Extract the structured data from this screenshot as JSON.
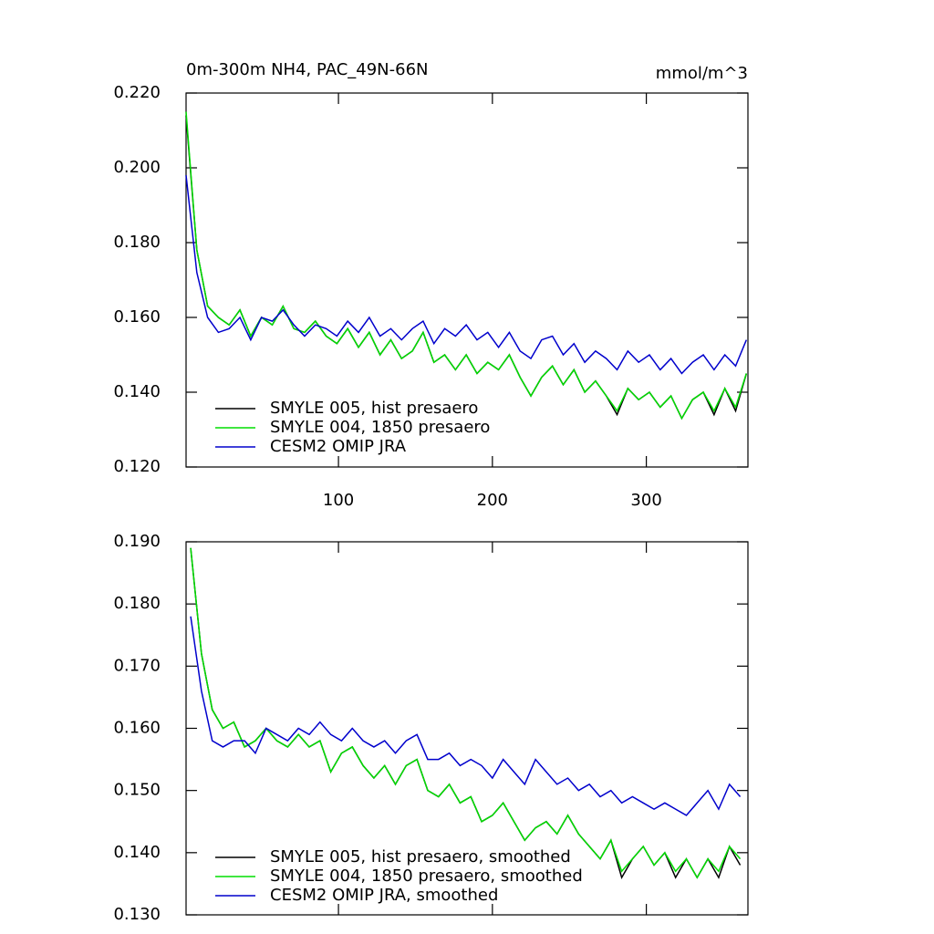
{
  "chart_data": [
    {
      "type": "line",
      "title": "0m-300m NH4, PAC_49N-66N",
      "units": "mmol/m^3",
      "x": [
        1,
        8,
        15,
        22,
        29,
        36,
        43,
        50,
        57,
        64,
        71,
        78,
        85,
        92,
        99,
        106,
        113,
        120,
        127,
        134,
        141,
        148,
        155,
        162,
        169,
        176,
        183,
        190,
        197,
        204,
        211,
        218,
        225,
        232,
        239,
        246,
        253,
        260,
        267,
        274,
        281,
        288,
        295,
        302,
        309,
        316,
        323,
        330,
        337,
        344,
        351,
        358,
        365
      ],
      "series": [
        {
          "name": "SMYLE 005, hist presaero",
          "color": "#000000",
          "values": [
            0.214,
            0.178,
            0.163,
            0.16,
            0.158,
            0.162,
            0.155,
            0.16,
            0.158,
            0.163,
            0.157,
            0.156,
            0.159,
            0.155,
            0.153,
            0.157,
            0.152,
            0.156,
            0.15,
            0.154,
            0.149,
            0.151,
            0.156,
            0.148,
            0.15,
            0.146,
            0.15,
            0.145,
            0.148,
            0.146,
            0.15,
            0.144,
            0.139,
            0.144,
            0.147,
            0.142,
            0.146,
            0.14,
            0.143,
            0.139,
            0.134,
            0.141,
            0.138,
            0.14,
            0.136,
            0.139,
            0.133,
            0.138,
            0.14,
            0.134,
            0.141,
            0.135,
            0.145
          ]
        },
        {
          "name": "SMYLE 004, 1850 presaero",
          "color": "#00dd00",
          "values": [
            0.215,
            0.178,
            0.163,
            0.16,
            0.158,
            0.162,
            0.155,
            0.16,
            0.158,
            0.163,
            0.157,
            0.156,
            0.159,
            0.155,
            0.153,
            0.157,
            0.152,
            0.156,
            0.15,
            0.154,
            0.149,
            0.151,
            0.156,
            0.148,
            0.15,
            0.146,
            0.15,
            0.145,
            0.148,
            0.146,
            0.15,
            0.144,
            0.139,
            0.144,
            0.147,
            0.142,
            0.146,
            0.14,
            0.143,
            0.139,
            0.135,
            0.141,
            0.138,
            0.14,
            0.136,
            0.139,
            0.133,
            0.138,
            0.14,
            0.135,
            0.141,
            0.136,
            0.145
          ]
        },
        {
          "name": "CESM2 OMIP JRA",
          "color": "#0000cc",
          "values": [
            0.198,
            0.172,
            0.16,
            0.156,
            0.157,
            0.16,
            0.154,
            0.16,
            0.159,
            0.162,
            0.158,
            0.155,
            0.158,
            0.157,
            0.155,
            0.159,
            0.156,
            0.16,
            0.155,
            0.157,
            0.154,
            0.157,
            0.159,
            0.153,
            0.157,
            0.155,
            0.158,
            0.154,
            0.156,
            0.152,
            0.156,
            0.151,
            0.149,
            0.154,
            0.155,
            0.15,
            0.153,
            0.148,
            0.151,
            0.149,
            0.146,
            0.151,
            0.148,
            0.15,
            0.146,
            0.149,
            0.145,
            0.148,
            0.15,
            0.146,
            0.15,
            0.147,
            0.154
          ]
        }
      ],
      "xlim": [
        1,
        366
      ],
      "xticks": [
        100,
        200,
        300
      ],
      "ylim": [
        0.12,
        0.22
      ],
      "yticks": [
        {
          "value": 0.12,
          "label": "0.120"
        },
        {
          "value": 0.14,
          "label": "0.140"
        },
        {
          "value": 0.16,
          "label": "0.160"
        },
        {
          "value": 0.18,
          "label": "0.180"
        },
        {
          "value": 0.2,
          "label": "0.200"
        },
        {
          "value": 0.22,
          "label": "0.220"
        }
      ],
      "legend": "lower left"
    },
    {
      "type": "line",
      "x": [
        4,
        11,
        18,
        25,
        32,
        39,
        46,
        53,
        60,
        67,
        74,
        81,
        88,
        95,
        102,
        109,
        116,
        123,
        130,
        137,
        144,
        151,
        158,
        165,
        172,
        179,
        186,
        193,
        200,
        207,
        214,
        221,
        228,
        235,
        242,
        249,
        256,
        263,
        270,
        277,
        284,
        291,
        298,
        305,
        312,
        319,
        326,
        333,
        340,
        347,
        354,
        361
      ],
      "series": [
        {
          "name": "SMYLE 005, hist presaero, smoothed",
          "color": "#000000",
          "values": [
            0.189,
            0.172,
            0.163,
            0.16,
            0.161,
            0.157,
            0.158,
            0.16,
            0.158,
            0.157,
            0.159,
            0.157,
            0.158,
            0.153,
            0.156,
            0.157,
            0.154,
            0.152,
            0.154,
            0.151,
            0.154,
            0.155,
            0.15,
            0.149,
            0.151,
            0.148,
            0.149,
            0.145,
            0.146,
            0.148,
            0.145,
            0.142,
            0.144,
            0.145,
            0.143,
            0.146,
            0.143,
            0.141,
            0.139,
            0.142,
            0.136,
            0.139,
            0.141,
            0.138,
            0.14,
            0.136,
            0.139,
            0.136,
            0.139,
            0.136,
            0.141,
            0.138
          ]
        },
        {
          "name": "SMYLE 004, 1850 presaero, smoothed",
          "color": "#00dd00",
          "values": [
            0.189,
            0.172,
            0.163,
            0.16,
            0.161,
            0.157,
            0.158,
            0.16,
            0.158,
            0.157,
            0.159,
            0.157,
            0.158,
            0.153,
            0.156,
            0.157,
            0.154,
            0.152,
            0.154,
            0.151,
            0.154,
            0.155,
            0.15,
            0.149,
            0.151,
            0.148,
            0.149,
            0.145,
            0.146,
            0.148,
            0.145,
            0.142,
            0.144,
            0.145,
            0.143,
            0.146,
            0.143,
            0.141,
            0.139,
            0.142,
            0.137,
            0.139,
            0.141,
            0.138,
            0.14,
            0.137,
            0.139,
            0.136,
            0.139,
            0.137,
            0.141,
            0.139
          ]
        },
        {
          "name": "CESM2 OMIP JRA, smoothed",
          "color": "#0000cc",
          "values": [
            0.178,
            0.166,
            0.158,
            0.157,
            0.158,
            0.158,
            0.156,
            0.16,
            0.159,
            0.158,
            0.16,
            0.159,
            0.161,
            0.159,
            0.158,
            0.16,
            0.158,
            0.157,
            0.158,
            0.156,
            0.158,
            0.159,
            0.155,
            0.155,
            0.156,
            0.154,
            0.155,
            0.154,
            0.152,
            0.155,
            0.153,
            0.151,
            0.155,
            0.153,
            0.151,
            0.152,
            0.15,
            0.151,
            0.149,
            0.15,
            0.148,
            0.149,
            0.148,
            0.147,
            0.148,
            0.147,
            0.146,
            0.148,
            0.15,
            0.147,
            0.151,
            0.149
          ]
        }
      ],
      "xlim": [
        1,
        366
      ],
      "xticks": [
        100,
        200,
        300
      ],
      "ylim": [
        0.13,
        0.19
      ],
      "yticks": [
        {
          "value": 0.13,
          "label": "0.130"
        },
        {
          "value": 0.14,
          "label": "0.140"
        },
        {
          "value": 0.15,
          "label": "0.150"
        },
        {
          "value": 0.16,
          "label": "0.160"
        },
        {
          "value": 0.17,
          "label": "0.170"
        },
        {
          "value": 0.18,
          "label": "0.180"
        },
        {
          "value": 0.19,
          "label": "0.190"
        }
      ],
      "legend": "lower left"
    }
  ]
}
